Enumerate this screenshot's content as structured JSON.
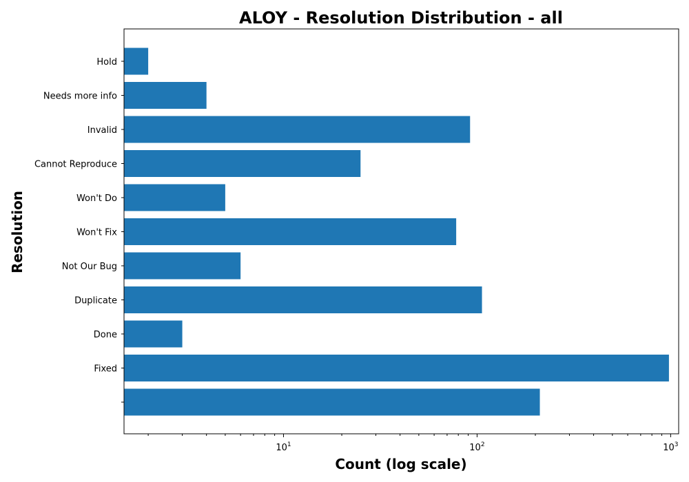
{
  "chart_data": {
    "type": "bar",
    "orientation": "horizontal",
    "title": "ALOY - Resolution Distribution - all",
    "xlabel": "Count (log scale)",
    "ylabel": "Resolution",
    "x_scale": "log",
    "xlim": [
      1.5,
      1100
    ],
    "x_ticks": [
      {
        "base": "10",
        "exp": "1",
        "value": 10
      },
      {
        "base": "10",
        "exp": "2",
        "value": 100
      },
      {
        "base": "10",
        "exp": "3",
        "value": 1000
      }
    ],
    "categories": [
      "Hold",
      "Needs more info",
      "Invalid",
      "Cannot Reproduce",
      "Won't Do",
      "Won't Fix",
      "Not Our Bug",
      "Duplicate",
      "Done",
      "Fixed",
      ""
    ],
    "values": [
      2,
      4,
      92,
      25,
      5,
      78,
      6,
      106,
      3,
      980,
      211
    ],
    "bar_color": "#1f77b4",
    "grid": false,
    "legend": "none"
  }
}
